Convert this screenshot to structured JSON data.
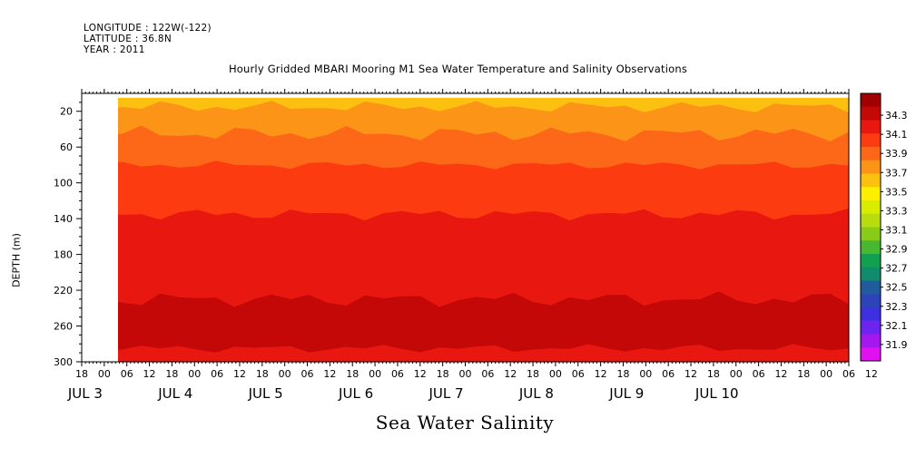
{
  "header": {
    "longitude": "LONGITUDE : 122W(-122)",
    "latitude": "LATITUDE : 36.8N",
    "year": "YEAR : 2011"
  },
  "chart_data": {
    "type": "heatmap",
    "title": "Hourly Gridded MBARI Mooring M1 Sea Water Temperature and Salinity Observations",
    "xlabel": "Sea Water Salinity",
    "ylabel": "DEPTH (m)",
    "ylim": [
      300,
      0
    ],
    "yticks": [
      20,
      60,
      100,
      140,
      180,
      220,
      260,
      300
    ],
    "x_range_hours": [
      -6,
      198
    ],
    "data_start_hour": 0,
    "x_hour_ticks": [
      "18",
      "00",
      "06",
      "12",
      "18",
      "00",
      "06",
      "12",
      "18",
      "00",
      "06",
      "12",
      "18",
      "00",
      "06",
      "12",
      "18",
      "00",
      "06",
      "12",
      "18",
      "00",
      "06",
      "12",
      "18",
      "00",
      "06",
      "12",
      "18",
      "00",
      "06",
      "12",
      "18",
      "00",
      "06",
      "12"
    ],
    "x_day_labels": [
      "JUL 3",
      "JUL 4",
      "JUL 5",
      "JUL 6",
      "JUL 7",
      "JUL 8",
      "JUL 9",
      "JUL 10"
    ],
    "colorbar": {
      "levels": [
        34.3,
        34.1,
        33.9,
        33.7,
        33.5,
        33.3,
        33.1,
        32.9,
        32.7,
        32.5,
        32.3,
        32.1,
        31.9
      ],
      "colors": [
        "#a00000",
        "#c40808",
        "#e81810",
        "#fc3c10",
        "#fc6818",
        "#fc9418",
        "#fcc010",
        "#fcf000",
        "#d8ec00",
        "#b8dc10",
        "#88cc18",
        "#48b830",
        "#10a050",
        "#108c6c",
        "#205c9c",
        "#2c44b8",
        "#3c30e0",
        "#6c24f0",
        "#a418f0",
        "#e010f0"
      ]
    },
    "layers": [
      {
        "salinity_min": 33.7,
        "salinity_max": 33.8,
        "depth_top": 5,
        "depth_bottom": 15,
        "color": "#fcc010"
      },
      {
        "salinity_min": 33.8,
        "salinity_max": 33.9,
        "depth_top": 15,
        "depth_bottom": 45,
        "color": "#fc9418"
      },
      {
        "salinity_min": 33.9,
        "salinity_max": 34.0,
        "depth_top": 45,
        "depth_bottom": 80,
        "color": "#fc6818"
      },
      {
        "salinity_min": 34.0,
        "salinity_max": 34.1,
        "depth_top": 80,
        "depth_bottom": 135,
        "color": "#fc3c10"
      },
      {
        "salinity_min": 34.1,
        "salinity_max": 34.2,
        "depth_top": 135,
        "depth_bottom": 230,
        "color": "#e81810"
      },
      {
        "salinity_min": 34.2,
        "salinity_max": 34.3,
        "depth_top": 230,
        "depth_bottom": 285,
        "color": "#c40808"
      },
      {
        "salinity_min": 34.1,
        "salinity_max": 34.2,
        "depth_top": 285,
        "depth_bottom": 300,
        "color": "#e81810"
      }
    ]
  }
}
